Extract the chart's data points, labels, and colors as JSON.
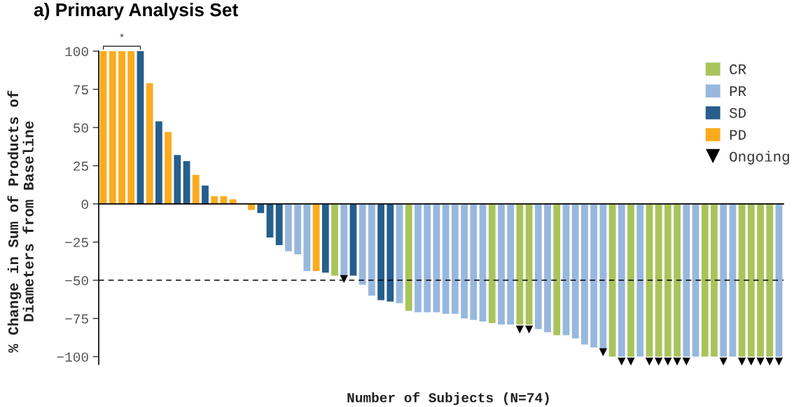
{
  "chart_data": {
    "type": "bar",
    "title": "a) Primary Analysis Set",
    "xlabel": "Number of Subjects (N=74)",
    "ylabel": "% Change in Sum of Products of\nDiameters from Baseline",
    "categories": [
      null,
      null,
      null,
      null,
      null,
      null,
      null,
      null,
      null,
      null,
      null,
      null,
      null,
      null,
      null,
      null,
      null,
      null,
      null,
      null,
      null,
      null,
      null,
      null,
      null,
      null,
      null,
      null,
      null,
      null,
      null,
      null,
      null,
      null,
      null,
      null,
      null,
      null,
      null,
      null,
      null,
      null,
      null,
      null,
      null,
      null,
      null,
      null,
      null,
      null,
      null,
      null,
      null,
      null,
      null,
      null,
      null,
      null,
      null,
      null,
      null,
      null,
      null,
      null,
      null,
      null,
      null,
      null,
      null,
      null,
      null,
      null,
      null,
      null
    ],
    "series": [
      {
        "name": "CR",
        "color": "#a9c45a",
        "values": [
          null,
          null,
          null,
          null,
          null,
          null,
          null,
          null,
          null,
          null,
          null,
          null,
          null,
          null,
          null,
          null,
          null,
          null,
          null,
          null,
          null,
          null,
          null,
          null,
          null,
          -47,
          null,
          null,
          null,
          null,
          null,
          null,
          null,
          -70,
          null,
          null,
          null,
          null,
          null,
          null,
          null,
          null,
          -78,
          null,
          null,
          -79,
          -79,
          null,
          null,
          -86,
          null,
          null,
          null,
          null,
          null,
          -100,
          null,
          -100,
          null,
          -100,
          -100,
          -100,
          -100,
          null,
          null,
          -100,
          -100,
          null,
          null,
          -100,
          -100,
          -100,
          -100,
          null
        ]
      },
      {
        "name": "PR",
        "color": "#98b7dd",
        "values": [
          null,
          null,
          null,
          null,
          null,
          null,
          null,
          null,
          null,
          null,
          null,
          null,
          null,
          null,
          null,
          null,
          null,
          null,
          null,
          null,
          -31,
          -33,
          -44,
          null,
          null,
          null,
          -47,
          null,
          -53,
          -60,
          null,
          null,
          -65,
          null,
          -71,
          -71,
          -71,
          -72,
          -72,
          -75,
          -76,
          -77,
          null,
          -79,
          -79,
          null,
          null,
          -82,
          -84,
          null,
          -86,
          -88,
          -92,
          -94,
          -95,
          null,
          -100,
          null,
          -100,
          null,
          null,
          null,
          null,
          -100,
          -100,
          null,
          null,
          -100,
          -100,
          null,
          null,
          null,
          null,
          -100
        ]
      },
      {
        "name": "SD",
        "color": "#265e8d",
        "values": [
          null,
          null,
          null,
          null,
          100,
          null,
          54,
          null,
          32,
          28,
          null,
          12,
          null,
          null,
          null,
          null,
          null,
          -6,
          -22,
          -27,
          null,
          null,
          null,
          null,
          -45,
          null,
          null,
          -47,
          null,
          null,
          -63,
          -64,
          null,
          null,
          null,
          null,
          null,
          null,
          null,
          null,
          null,
          null,
          null,
          null,
          null,
          null,
          null,
          null,
          null,
          null,
          null,
          null,
          null,
          null,
          null,
          null,
          null,
          null,
          null,
          null,
          null,
          null,
          null,
          null,
          null,
          null,
          null,
          null,
          null,
          null,
          null,
          null,
          null,
          null
        ]
      },
      {
        "name": "PD",
        "color": "#fcab1e",
        "values": [
          100,
          100,
          100,
          100,
          null,
          79,
          null,
          47,
          null,
          null,
          19,
          null,
          5,
          5,
          3,
          null,
          -4,
          null,
          null,
          null,
          null,
          null,
          null,
          -44,
          null,
          null,
          null,
          null,
          null,
          null,
          null,
          null,
          null,
          null,
          null,
          null,
          null,
          null,
          null,
          null,
          null,
          null,
          null,
          null,
          null,
          null,
          null,
          null,
          null,
          null,
          null,
          null,
          null,
          null,
          null,
          null,
          null,
          null,
          null,
          null,
          null,
          null,
          null,
          null,
          null,
          null,
          null,
          null,
          null,
          null,
          null,
          null,
          null,
          null
        ]
      },
      {
        "name": "Ongoing",
        "type": "scatter",
        "marker": "triangle",
        "color": "#000000",
        "values": [
          null,
          null,
          null,
          null,
          null,
          null,
          null,
          null,
          null,
          null,
          null,
          null,
          null,
          null,
          null,
          null,
          null,
          null,
          null,
          null,
          null,
          null,
          null,
          null,
          null,
          null,
          -49,
          null,
          null,
          null,
          null,
          null,
          null,
          null,
          null,
          null,
          null,
          null,
          null,
          null,
          null,
          null,
          null,
          null,
          null,
          -82,
          -82,
          null,
          null,
          null,
          null,
          null,
          null,
          null,
          -97,
          null,
          -103,
          -103,
          null,
          -103,
          -103,
          -103,
          -103,
          -103,
          null,
          null,
          null,
          -103,
          null,
          -103,
          -103,
          -103,
          -103,
          -103
        ]
      }
    ],
    "ylim": [
      -105,
      100
    ],
    "yticks": [
      -100,
      -75,
      -50,
      -25,
      0,
      25,
      50,
      75,
      100
    ],
    "ref_lines": [
      {
        "axis": "y",
        "value": -50,
        "color": "#000000",
        "line_style": "dashed"
      }
    ],
    "annotations": [
      "*"
    ],
    "legend": "top right",
    "tick_labels": "y",
    "grid": false
  }
}
